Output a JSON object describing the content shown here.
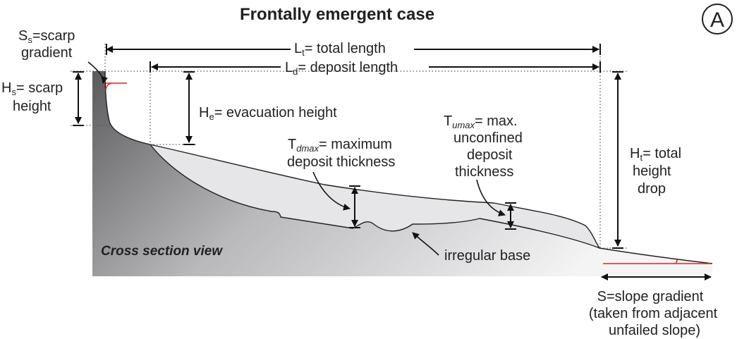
{
  "title": "Frontally emergent case",
  "panel_letter": "A",
  "view_label": "Cross section view",
  "labels": {
    "scarp_gradient": {
      "symbol": "S",
      "sub": "s",
      "line1": "=scarp",
      "line2": "gradient"
    },
    "scarp_height": {
      "symbol": "H",
      "sub": "s",
      "line1": "= scarp",
      "line2": "height"
    },
    "total_length": {
      "symbol": "L",
      "sub": "t",
      "text": "= total length"
    },
    "deposit_length": {
      "symbol": "L",
      "sub": "d",
      "text": "= deposit length"
    },
    "evacuation_height": {
      "symbol": "H",
      "sub": "e",
      "text": "= evacuation height"
    },
    "max_deposit_thickness": {
      "symbol": "T",
      "sub": "dmax",
      "line1": "= maximum",
      "line2": "deposit thickness"
    },
    "max_unconfined_thickness": {
      "symbol": "T",
      "sub": "umax",
      "line1": "= max.",
      "line2": "unconfined",
      "line3": "deposit",
      "line4": "thickness"
    },
    "total_height_drop": {
      "symbol": "H",
      "sub": "t",
      "line1": "= total",
      "line2": "height",
      "line3": "drop"
    },
    "irregular_base": "irregular base",
    "slope_gradient": {
      "line1": "S=slope gradient",
      "line2": "(taken from adjacent",
      "line3": "unfailed slope)"
    }
  },
  "colors": {
    "substrate_dark": "#5b5b5d",
    "substrate_light": "#f4f4f5",
    "deposit_fill": "#e6e6e8",
    "angle_marker": "#d9291c",
    "ink": "#231f20"
  }
}
